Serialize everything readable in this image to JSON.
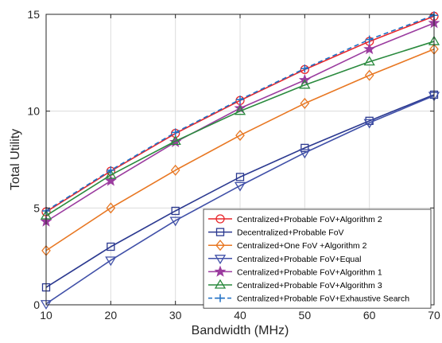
{
  "chart_data": {
    "type": "line",
    "xlabel": "Bandwidth (MHz)",
    "ylabel": "Total Utility",
    "xlim": [
      10,
      70
    ],
    "ylim": [
      0,
      15
    ],
    "xticks": [
      10,
      20,
      30,
      40,
      50,
      60,
      70
    ],
    "yticks": [
      0,
      5,
      10,
      15
    ],
    "grid": true,
    "legend_position": "bottom-right",
    "x": [
      10,
      20,
      30,
      40,
      50,
      60,
      70
    ],
    "series": [
      {
        "name": "Centralized+Probable FoV+Algorithm 2",
        "color": "#e8262b",
        "marker": "circle",
        "dash": "solid",
        "values": [
          4.8,
          6.9,
          8.85,
          10.55,
          12.15,
          13.6,
          14.9
        ]
      },
      {
        "name": "Decentralized+Probable FoV",
        "color": "#2b3990",
        "marker": "square",
        "dash": "solid",
        "values": [
          0.9,
          3.0,
          4.85,
          6.6,
          8.1,
          9.5,
          10.85
        ]
      },
      {
        "name": "Centralized+One FoV +Algorithm 2",
        "color": "#e87722",
        "marker": "diamond",
        "dash": "solid",
        "values": [
          2.8,
          5.0,
          6.95,
          8.75,
          10.4,
          11.85,
          13.2
        ]
      },
      {
        "name": "Centralized+Probable FoV+Equal",
        "color": "#4050a8",
        "marker": "triangle-down",
        "dash": "solid",
        "values": [
          0.05,
          2.3,
          4.35,
          6.15,
          7.85,
          9.4,
          10.8
        ]
      },
      {
        "name": "Centralized+Probable FoV+Algorithm 1",
        "color": "#9b3c9f",
        "marker": "star",
        "dash": "solid",
        "values": [
          4.3,
          6.4,
          8.4,
          10.15,
          11.6,
          13.2,
          14.55
        ]
      },
      {
        "name": "Centralized+Probable FoV+Algorithm 3",
        "color": "#2a8a3e",
        "marker": "triangle-up",
        "dash": "solid",
        "values": [
          4.6,
          6.7,
          8.45,
          10.0,
          11.35,
          12.55,
          13.6
        ]
      },
      {
        "name": "Centralized+Probable FoV+Exhaustive Search",
        "color": "#1f6fc4",
        "marker": "plus",
        "dash": "dashed",
        "values": [
          4.85,
          6.95,
          8.9,
          10.6,
          12.2,
          13.7,
          14.95
        ]
      }
    ]
  }
}
